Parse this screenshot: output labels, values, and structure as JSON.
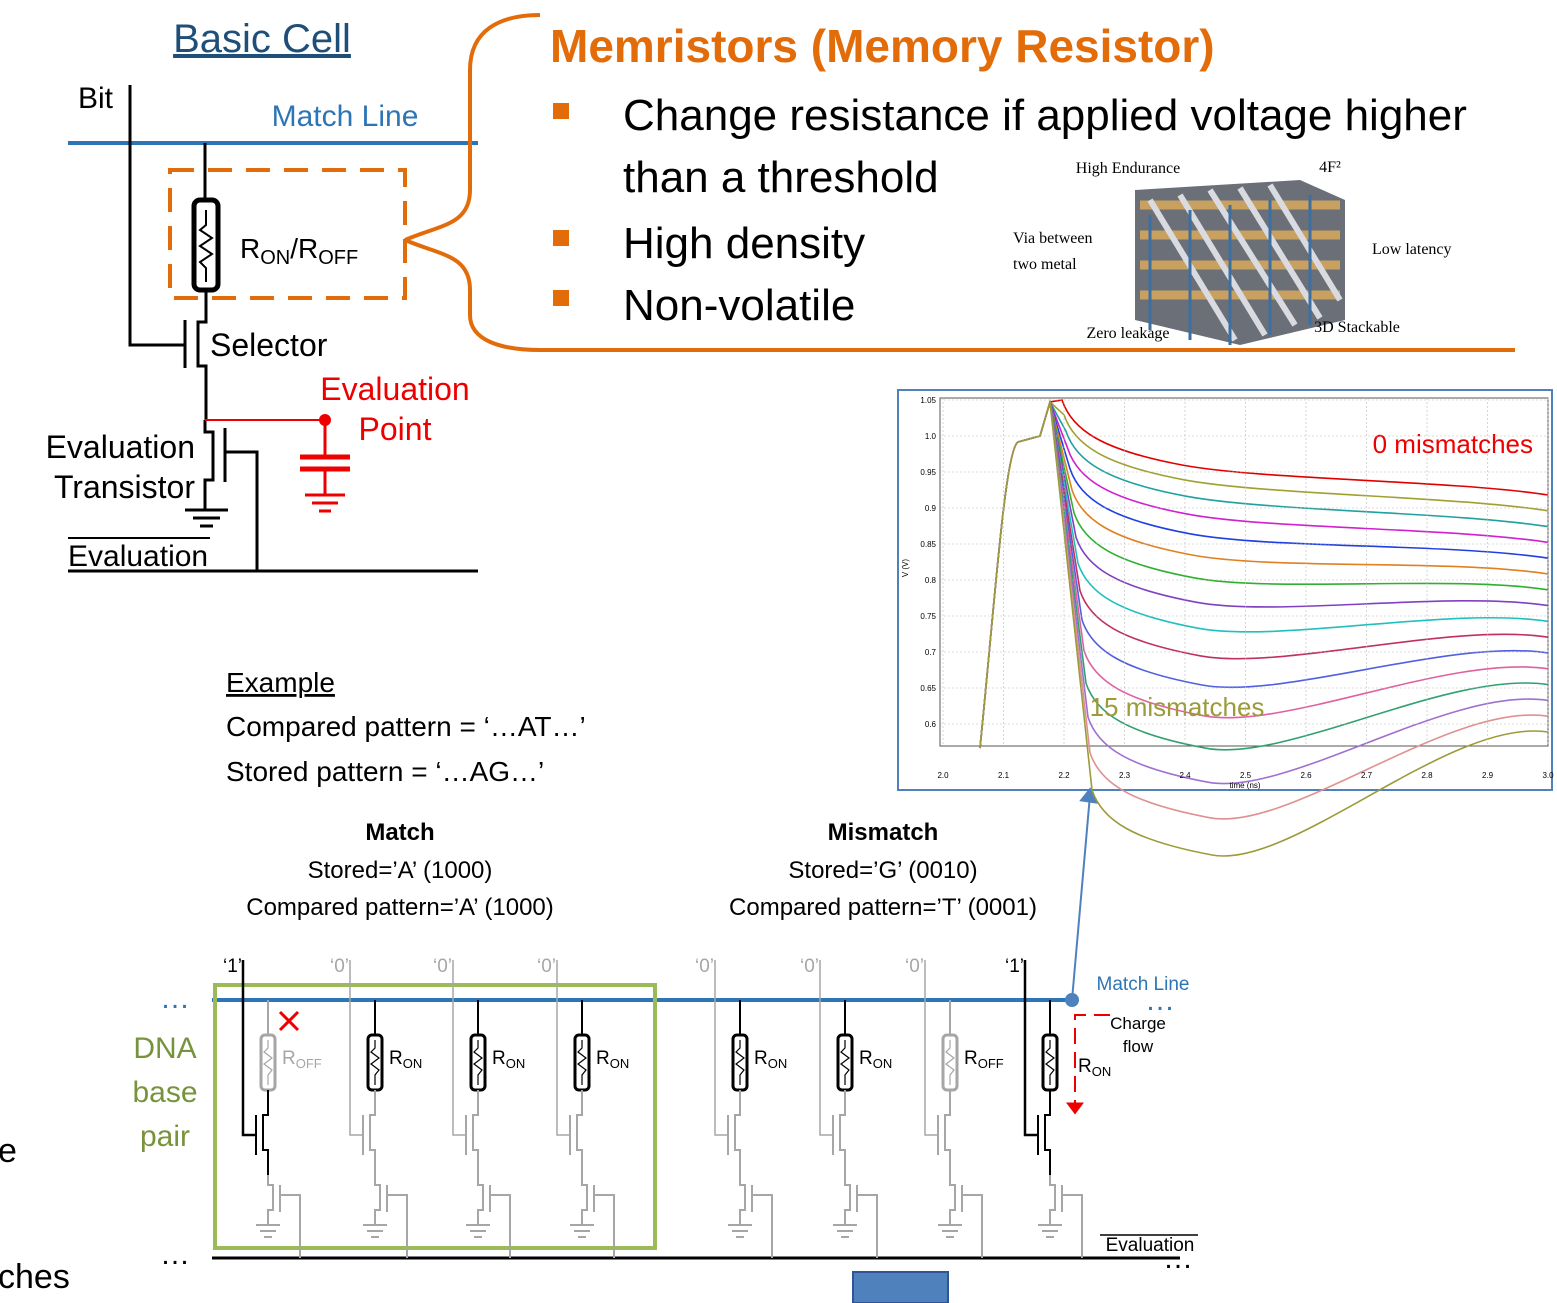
{
  "basic_cell": {
    "title": "Basic Cell",
    "bit": "Bit",
    "match_line": "Match Line",
    "r": "R",
    "r_on_sub": "ON",
    "slash": "/",
    "r_off_sub": "OFF",
    "selector": "Selector",
    "evaluation_point": [
      "Evaluation",
      "Point"
    ],
    "evaluation_transistor": [
      "Evaluation",
      "Transistor"
    ],
    "evaluation": "Evaluation"
  },
  "memristor": {
    "title": "Memristors (Memory Resistor)",
    "bullets": [
      "Change resistance if applied voltage higher",
      "than a threshold",
      "High density",
      "Non-volatile"
    ],
    "figure_labels": [
      "High Endurance",
      "4F²",
      "Via between",
      "two metal",
      "Low latency",
      "Zero leakage",
      "3D Stackable"
    ]
  },
  "plot": {
    "yticks": [
      "1.05",
      "1.0",
      "0.95",
      "0.9",
      "0.85",
      "0.8",
      "0.75",
      "0.7",
      "0.65",
      "0.6"
    ],
    "xticks": [
      "2.0",
      "2.1",
      "2.2",
      "2.3",
      "2.4",
      "2.5",
      "2.6",
      "2.7",
      "2.8",
      "2.9",
      "3.0"
    ],
    "ylabel": "V (V)",
    "xlabel": "time (ns)",
    "label_top": "0 mismatches",
    "label_bottom": "15 mismatches"
  },
  "example": {
    "title": "Example",
    "lines": [
      "Compared pattern = ‘…AT…’",
      "Stored pattern = ‘…AG…’"
    ]
  },
  "match": {
    "title": "Match",
    "lines": [
      "Stored=’A’ (1000)",
      "Compared pattern=’A’ (1000)"
    ]
  },
  "mismatch": {
    "title": "Mismatch",
    "lines": [
      "Stored=’G’ (0010)",
      "Compared pattern=’T’ (0001)"
    ]
  },
  "array": {
    "bits": [
      "‘1’",
      "‘0’",
      "‘0’",
      "‘0’",
      "‘0’",
      "‘0’",
      "‘0’",
      "‘1’"
    ],
    "resistors": [
      {
        "r": "R",
        "sub": "OFF"
      },
      {
        "r": "R",
        "sub": "ON"
      },
      {
        "r": "R",
        "sub": "ON"
      },
      {
        "r": "R",
        "sub": "ON"
      },
      {
        "r": "R",
        "sub": "ON"
      },
      {
        "r": "R",
        "sub": "ON"
      },
      {
        "r": "R",
        "sub": "OFF"
      },
      {
        "r": "R",
        "sub": "ON"
      }
    ],
    "match_line": "Match Line",
    "charge_flow": [
      "Charge",
      "flow"
    ],
    "evaluation": "Evaluation",
    "ellipsis": "…",
    "dna": [
      "DNA",
      "base",
      "pair"
    ]
  },
  "left_cut": [
    "e",
    "ches"
  ]
}
